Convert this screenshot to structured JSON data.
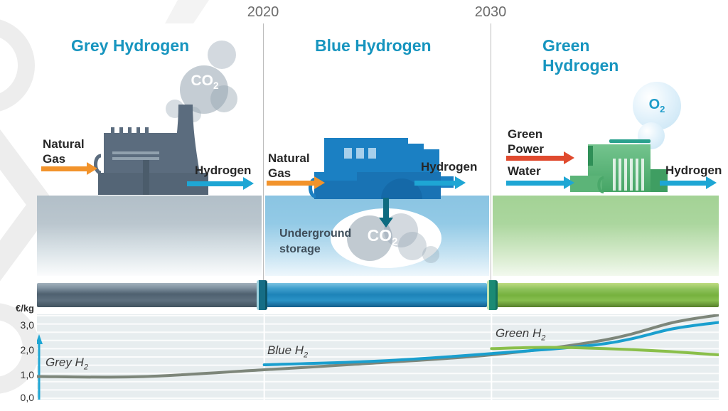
{
  "timeline": {
    "start_year": "2020",
    "end_year": "2030"
  },
  "sections": {
    "grey": {
      "title": "Grey Hydrogen",
      "input_line1": "Natural",
      "input_line2": "Gas",
      "output": "Hydrogen",
      "emission": {
        "text": "CO",
        "sub": "2"
      }
    },
    "blue": {
      "title": "Blue Hydrogen",
      "input_line1": "Natural",
      "input_line2": "Gas",
      "output": "Hydrogen",
      "storage_line1": "Underground",
      "storage_line2": "storage",
      "emission": {
        "text": "CO",
        "sub": "2"
      }
    },
    "green": {
      "title_line1": "Green",
      "title_line2": "Hydrogen",
      "input1_line1": "Green",
      "input1_line2": "Power",
      "input2": "Water",
      "output": "Hydrogen",
      "emission": {
        "text": "O",
        "sub": "2"
      }
    }
  },
  "chart_data": {
    "type": "line",
    "ylabel": "€/kg",
    "xlabel": "",
    "grid": true,
    "legend": "inline-labels",
    "ylim": [
      0,
      3.43
    ],
    "x_render_range": [
      2010,
      2040
    ],
    "x_axis_markers": [
      2020,
      2030
    ],
    "y_ticks": [
      0.0,
      1.0,
      2.0,
      3.0
    ],
    "y_tick_labels": [
      "0,0",
      "1,0",
      "2,0",
      "3,0"
    ],
    "series": [
      {
        "name": "Grey H2",
        "label": {
          "text": "Grey H",
          "sub": "2"
        },
        "color": "#7d867a",
        "points": [
          [
            2010,
            0.93
          ],
          [
            2014.5,
            0.92
          ],
          [
            2020,
            1.2
          ],
          [
            2024,
            1.42
          ],
          [
            2030,
            1.8
          ],
          [
            2035,
            2.4
          ],
          [
            2038,
            3.1
          ],
          [
            2040,
            3.4
          ]
        ]
      },
      {
        "name": "Blue H2",
        "label": {
          "text": "Blue H",
          "sub": "2"
        },
        "color": "#1a9fce",
        "points": [
          [
            2020,
            1.4
          ],
          [
            2025,
            1.55
          ],
          [
            2030,
            1.85
          ],
          [
            2035,
            2.25
          ],
          [
            2038,
            2.85
          ],
          [
            2040,
            3.1
          ]
        ]
      },
      {
        "name": "Green H2",
        "label": {
          "text": "Green H",
          "sub": "2"
        },
        "color": "#8abf4a",
        "points": [
          [
            2030,
            2.05
          ],
          [
            2032.5,
            2.1
          ],
          [
            2035,
            2.05
          ],
          [
            2037.5,
            1.95
          ],
          [
            2040,
            1.8
          ]
        ]
      }
    ]
  },
  "colors": {
    "heading_teal": "#1795bf",
    "orange_arrow": "#f2932b",
    "cyan_arrow": "#1ea6d4",
    "red_arrow": "#e04a2e",
    "down_arrow_teal": "#0e6b80",
    "grey_factory": "#5b6c7e",
    "blue_factory": "#1b80c3",
    "green_factory": "#4aa86a",
    "grey_pipe": "#5d6f7e",
    "blue_pipe": "#1d83b8",
    "green_pipe": "#76b13e"
  }
}
